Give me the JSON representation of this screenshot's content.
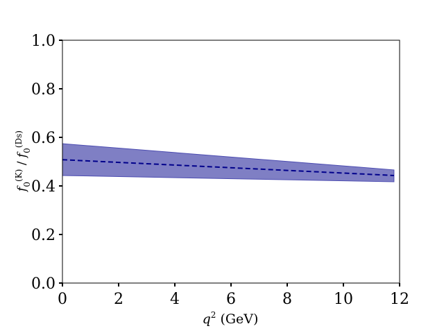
{
  "chart_data": {
    "type": "line",
    "xlabel": {
      "base": "q",
      "sup": "2",
      "unit": "(GeV)"
    },
    "ylabel": {
      "num_base": "f",
      "num_sub": "0",
      "num_sup": "(K)",
      "slash": "/",
      "den_base": "f",
      "den_sub": "0",
      "den_sup": "(Ds)"
    },
    "xlim": [
      0,
      12
    ],
    "ylim": [
      0,
      1.0
    ],
    "x_ticks": [
      0,
      2,
      4,
      6,
      8,
      10,
      12
    ],
    "y_ticks": [
      0.0,
      0.2,
      0.4,
      0.6,
      0.8,
      1.0
    ],
    "x_tick_labels": [
      "0",
      "2",
      "4",
      "6",
      "8",
      "10",
      "12"
    ],
    "y_tick_labels": [
      "0.0",
      "0.2",
      "0.4",
      "0.6",
      "0.8",
      "1.0"
    ],
    "grid": false,
    "series": [
      {
        "style": "dashed",
        "color": "#00008b",
        "x": [
          0,
          11.8
        ],
        "y": [
          0.508,
          0.443
        ],
        "band_upper": [
          0.574,
          0.466
        ],
        "band_lower": [
          0.443,
          0.417
        ],
        "band_color": "#7f7fc4"
      }
    ]
  }
}
